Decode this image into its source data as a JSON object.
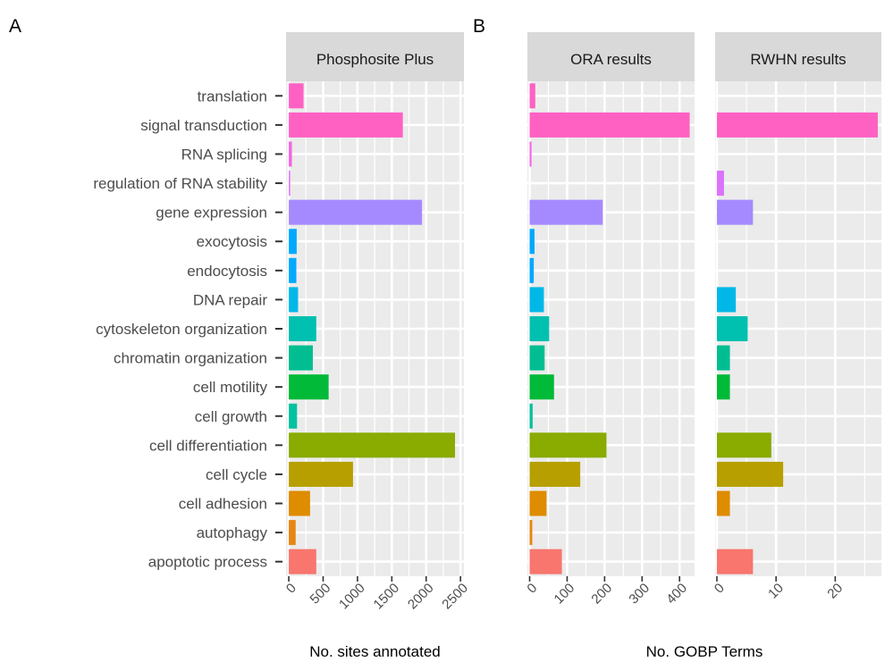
{
  "chart_data": {
    "type": "bar",
    "orientation": "horizontal",
    "categories": [
      "translation",
      "signal transduction",
      "RNA splicing",
      "regulation of RNA stability",
      "gene expression",
      "exocytosis",
      "endocytosis",
      "DNA repair",
      "cytoskeleton organization",
      "chromatin organization",
      "cell motility",
      "cell growth",
      "cell differentiation",
      "cell cycle",
      "cell adhesion",
      "autophagy",
      "apoptotic process"
    ],
    "colors": [
      "#FF61C3",
      "#FF61C3",
      "#F564E3",
      "#DB72FB",
      "#A58AFF",
      "#00A9FF",
      "#00A9FF",
      "#00B8E7",
      "#00C0AF",
      "#00BE91",
      "#00BA38",
      "#00C19F",
      "#8AAB00",
      "#B79F00",
      "#DE8C00",
      "#E68613",
      "#F8766D"
    ],
    "panel_labels": [
      "A",
      "B"
    ],
    "panels": [
      {
        "strip": "Phosphosite Plus",
        "xlabel": "No. sites annotated",
        "xlim": [
          -40,
          2550
        ],
        "ticks": [
          0,
          500,
          1000,
          1500,
          2000,
          2500
        ],
        "minor_ticks": [
          250,
          750,
          1250,
          1750,
          2250
        ],
        "values": [
          215,
          1660,
          45,
          20,
          1940,
          115,
          110,
          135,
          400,
          350,
          580,
          120,
          2420,
          935,
          310,
          100,
          400
        ]
      },
      {
        "strip": "ORA results",
        "xlim": [
          -6,
          440
        ],
        "ticks": [
          0,
          100,
          200,
          300,
          400
        ],
        "minor_ticks": [
          50,
          150,
          250,
          350
        ],
        "values": [
          15,
          427,
          5,
          0,
          195,
          13,
          11,
          38,
          52,
          40,
          65,
          8,
          205,
          135,
          45,
          7,
          86
        ]
      },
      {
        "strip": "RWHN results",
        "xlim": [
          -0.3,
          27.8
        ],
        "ticks": [
          0,
          10,
          20
        ],
        "minor_ticks": [
          5,
          15,
          25
        ],
        "values": [
          0,
          27.2,
          0,
          1.2,
          6.1,
          0,
          0,
          3.2,
          5.2,
          2.2,
          2.2,
          0,
          9.2,
          11.2,
          2.2,
          0,
          6.1
        ]
      }
    ],
    "shared_xlabel": "No. GOBP Terms"
  }
}
